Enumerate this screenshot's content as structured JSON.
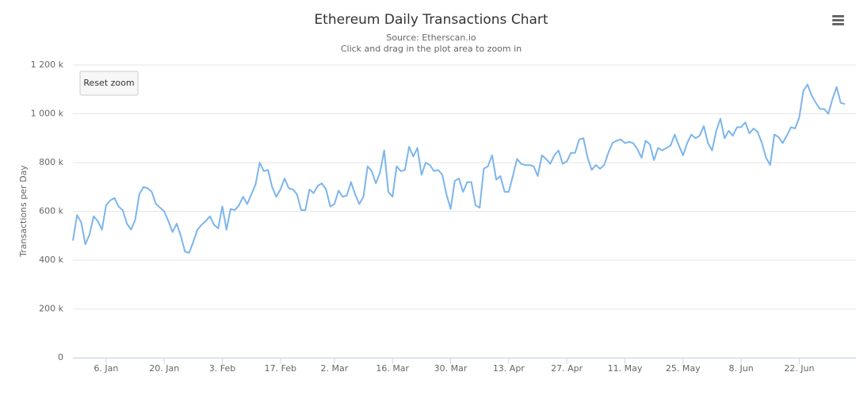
{
  "chart_data": {
    "type": "line",
    "title": "Ethereum Daily Transactions Chart",
    "subtitle": [
      "Source: Etherscan.io",
      "Click and drag in the plot area to zoom in"
    ],
    "y_label": "Transactions per Day",
    "reset_button": "Reset zoom",
    "ylim": [
      0,
      1200000
    ],
    "yticks": [
      {
        "value": 0,
        "label": "0"
      },
      {
        "value": 200000,
        "label": "200 k"
      },
      {
        "value": 400000,
        "label": "400 k"
      },
      {
        "value": 600000,
        "label": "600 k"
      },
      {
        "value": 800000,
        "label": "800 k"
      },
      {
        "value": 1000000,
        "label": "1 000 k"
      },
      {
        "value": 1200000,
        "label": "1 200 k"
      }
    ],
    "grid": true,
    "color": "#7cb5ec",
    "categories": [
      null,
      null,
      null,
      null,
      null,
      null,
      null,
      null,
      "6. Jan",
      null,
      null,
      null,
      null,
      null,
      null,
      null,
      null,
      null,
      null,
      null,
      null,
      null,
      "20. Jan",
      null,
      null,
      null,
      null,
      null,
      null,
      null,
      null,
      null,
      null,
      null,
      null,
      null,
      "3. Feb",
      null,
      null,
      null,
      null,
      null,
      null,
      null,
      null,
      null,
      null,
      null,
      null,
      null,
      "17. Feb",
      null,
      null,
      null,
      null,
      null,
      null,
      null,
      null,
      null,
      null,
      null,
      null,
      "2. Mar",
      null,
      null,
      null,
      null,
      null,
      null,
      null,
      null,
      null,
      null,
      null,
      null,
      null,
      "16. Mar",
      null,
      null,
      null,
      null,
      null,
      null,
      null,
      null,
      null,
      null,
      null,
      null,
      null,
      "30. Mar",
      null,
      null,
      null,
      null,
      null,
      null,
      null,
      null,
      null,
      null,
      null,
      null,
      null,
      "13. Apr",
      null,
      null,
      null,
      null,
      null,
      null,
      null,
      null,
      null,
      null,
      null,
      null,
      null,
      "27. Apr",
      null,
      null,
      null,
      null,
      null,
      null,
      null,
      null,
      null,
      null,
      null,
      null,
      null,
      "11. May",
      null,
      null,
      null,
      null,
      null,
      null,
      null,
      null,
      null,
      null,
      null,
      null,
      null,
      "25. May",
      null,
      null,
      null,
      null,
      null,
      null,
      null,
      null,
      null,
      null,
      null,
      null,
      null,
      "8. Jun",
      null,
      null,
      null,
      null,
      null,
      null,
      null,
      null,
      null,
      null,
      null,
      null,
      null,
      "22. Jun",
      null,
      null,
      null,
      null,
      null,
      null,
      null,
      null,
      null,
      null,
      null
    ],
    "values": [
      480000,
      585000,
      555000,
      465000,
      505000,
      580000,
      560000,
      525000,
      625000,
      645000,
      655000,
      620000,
      605000,
      550000,
      525000,
      565000,
      670000,
      700000,
      695000,
      680000,
      630000,
      615000,
      600000,
      560000,
      515000,
      550000,
      500000,
      435000,
      430000,
      475000,
      525000,
      545000,
      560000,
      580000,
      545000,
      530000,
      620000,
      525000,
      610000,
      605000,
      625000,
      660000,
      630000,
      670000,
      710000,
      800000,
      765000,
      770000,
      700000,
      660000,
      690000,
      735000,
      695000,
      690000,
      670000,
      605000,
      605000,
      690000,
      675000,
      705000,
      715000,
      690000,
      620000,
      630000,
      685000,
      660000,
      665000,
      720000,
      670000,
      630000,
      660000,
      785000,
      765000,
      715000,
      760000,
      850000,
      680000,
      660000,
      785000,
      765000,
      770000,
      865000,
      825000,
      860000,
      750000,
      800000,
      790000,
      765000,
      770000,
      750000,
      670000,
      610000,
      725000,
      735000,
      680000,
      720000,
      720000,
      625000,
      615000,
      775000,
      785000,
      830000,
      730000,
      745000,
      680000,
      680000,
      745000,
      815000,
      795000,
      790000,
      790000,
      785000,
      745000,
      830000,
      815000,
      795000,
      830000,
      850000,
      795000,
      805000,
      840000,
      840000,
      895000,
      900000,
      820000,
      770000,
      790000,
      775000,
      790000,
      840000,
      880000,
      890000,
      895000,
      880000,
      885000,
      880000,
      855000,
      820000,
      890000,
      875000,
      810000,
      860000,
      850000,
      860000,
      870000,
      915000,
      870000,
      830000,
      880000,
      915000,
      900000,
      910000,
      950000,
      880000,
      850000,
      930000,
      980000,
      900000,
      930000,
      910000,
      945000,
      945000,
      965000,
      920000,
      940000,
      925000,
      880000,
      820000,
      790000,
      915000,
      905000,
      880000,
      910000,
      945000,
      940000,
      985000,
      1095000,
      1120000,
      1075000,
      1045000,
      1020000,
      1020000,
      1000000,
      1060000,
      1110000,
      1045000,
      1040000
    ]
  }
}
